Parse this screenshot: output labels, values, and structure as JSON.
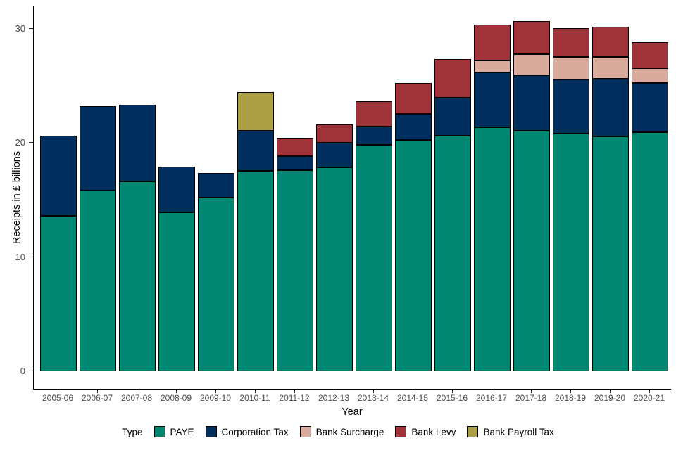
{
  "chart_data": {
    "type": "bar",
    "stacked": true,
    "xlabel": "Year",
    "ylabel": "Receipts in £ billions",
    "ylim": [
      0,
      30
    ],
    "yticks": [
      0,
      10,
      20,
      30
    ],
    "grid": false,
    "legend_title": "Type",
    "legend_position": "bottom",
    "categories": [
      "2005-06",
      "2006-07",
      "2007-08",
      "2008-09",
      "2009-10",
      "2010-11",
      "2011-12",
      "2012-13",
      "2013-14",
      "2014-15",
      "2015-16",
      "2016-17",
      "2017-18",
      "2018-19",
      "2019-20",
      "2020-21"
    ],
    "series": [
      {
        "name": "PAYE",
        "color": "#008772",
        "values": [
          13.6,
          15.8,
          16.6,
          13.9,
          15.2,
          17.5,
          17.6,
          17.8,
          19.8,
          20.2,
          20.6,
          21.3,
          21.0,
          20.8,
          20.5,
          20.9
        ]
      },
      {
        "name": "Corporation Tax",
        "color": "#002f5e",
        "values": [
          7.0,
          7.4,
          6.7,
          4.0,
          2.1,
          3.5,
          1.2,
          2.2,
          1.6,
          2.3,
          3.3,
          4.8,
          4.9,
          4.7,
          5.1,
          4.3
        ]
      },
      {
        "name": "Bank Surcharge",
        "color": "#d8ab9d",
        "values": [
          0,
          0,
          0,
          0,
          0,
          0,
          0,
          0,
          0,
          0,
          0,
          1.1,
          1.8,
          2.0,
          1.9,
          1.3
        ]
      },
      {
        "name": "Bank Levy",
        "color": "#a03239",
        "values": [
          0,
          0,
          0,
          0,
          0,
          0,
          1.6,
          1.6,
          2.2,
          2.7,
          3.4,
          3.1,
          2.9,
          2.5,
          2.6,
          2.3
        ]
      },
      {
        "name": "Bank Payroll Tax",
        "color": "#aba045",
        "values": [
          0,
          0,
          0,
          0,
          0,
          3.4,
          0,
          0,
          0,
          0,
          0,
          0,
          0,
          0,
          0,
          0
        ]
      }
    ],
    "axis_text_color": "#4d4d4d",
    "bar_outline_color": "#000000"
  }
}
